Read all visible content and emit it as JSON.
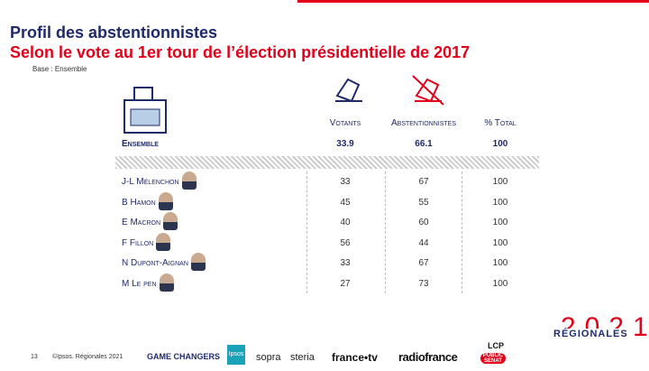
{
  "header": {
    "title": "Profil des abstentionnistes",
    "subtitle": "Selon le vote au 1er tour de l’élection présidentielle de 2017",
    "base": "Base : Ensemble"
  },
  "table": {
    "columns": [
      "Votants",
      "Abstentionnistes",
      "% Total"
    ],
    "total": {
      "label": "Ensemble",
      "values": [
        33.9,
        66.1,
        100
      ]
    },
    "rows": [
      {
        "label": "J-L Mélenchon",
        "values": [
          33,
          67,
          100
        ]
      },
      {
        "label": "B Hamon",
        "values": [
          45,
          55,
          100
        ]
      },
      {
        "label": "E Macron",
        "values": [
          40,
          60,
          100
        ]
      },
      {
        "label": "F Fillon",
        "values": [
          56,
          44,
          100
        ]
      },
      {
        "label": "N Dupont-Aignan",
        "values": [
          33,
          67,
          100
        ]
      },
      {
        "label": "M Le pen",
        "values": [
          27,
          73,
          100
        ]
      }
    ]
  },
  "footer": {
    "page": "13",
    "copyright": "©Ipsos. Régionales 2021",
    "tagline": "GAME CHANGERS",
    "logos": [
      "Ipsos",
      "sopra",
      "steria",
      "france•tv",
      "radiofrance",
      "LCP",
      "PUBLIC SENAT"
    ],
    "brand_year": "2021",
    "brand_name": "RÉGIONALES"
  }
}
